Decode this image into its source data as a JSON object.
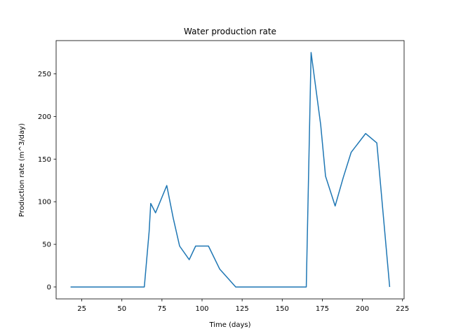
{
  "chart_data": {
    "type": "line",
    "title": "Water production rate",
    "xlabel": "Time (days)",
    "ylabel": "Production rate (m^3/day)",
    "xlim": [
      9,
      226
    ],
    "ylim": [
      -14,
      289
    ],
    "xticks": [
      25,
      50,
      75,
      100,
      125,
      150,
      175,
      200,
      225
    ],
    "yticks": [
      0,
      50,
      100,
      150,
      200,
      250
    ],
    "grid": false,
    "series": [
      {
        "color": "#1f77b4",
        "x": [
          18,
          64,
          67,
          68,
          71,
          78,
          82,
          86,
          92,
          96,
          104,
          111,
          121,
          128,
          135,
          150,
          165,
          168,
          174,
          177,
          183,
          188,
          193,
          202,
          209,
          217
        ],
        "y": [
          0,
          0,
          65,
          98,
          87,
          119,
          81,
          48,
          32,
          48,
          48,
          21,
          0,
          0,
          0,
          0,
          0,
          275,
          190,
          130,
          95,
          128,
          158,
          180,
          169,
          0
        ]
      }
    ]
  }
}
